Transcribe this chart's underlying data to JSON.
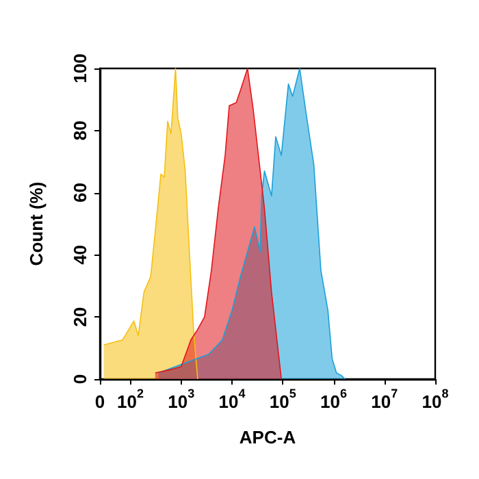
{
  "chart_data": {
    "type": "area",
    "xlabel": "APC-A",
    "ylabel": "Count (%)",
    "log": "x",
    "xlim": [
      0,
      100000000
    ],
    "xticks": [
      0,
      {
        "value": 100,
        "label": "10$^{2}$"
      },
      {
        "value": 1000,
        "label": "10$^{3}$"
      },
      {
        "value": 10000,
        "label": "10$^{4}$"
      },
      {
        "value": 100000,
        "label": "10$^{5}$"
      },
      {
        "value": 1000000,
        "label": "10$^{6}$"
      },
      {
        "value": 10000000,
        "label": "10$^{7}$"
      },
      {
        "value": 100000000,
        "label": "10$^{8}$"
      }
    ],
    "ylim": [
      0,
      100
    ],
    "yticks": [
      0,
      20,
      40,
      60,
      80,
      100
    ],
    "grid": false,
    "series": [
      {
        "color": "#f5c010",
        "x": [
          30,
          70,
          117,
          143,
          185,
          251,
          324,
          398,
          464,
          541,
          631,
          774,
          858,
          1000,
          1200,
          1450,
          1750,
          2110
        ],
        "values": [
          11,
          12.6,
          18.7,
          14,
          28,
          33,
          51,
          66,
          65,
          83,
          79,
          100,
          84,
          79,
          67,
          41,
          16,
          0
        ]
      },
      {
        "color": "#1aa0d8",
        "x": [
          359,
          3470,
          6470,
          10000,
          14700,
          20200,
          27800,
          35900,
          38300,
          43500,
          60000,
          72600,
          93700,
          129000,
          156000,
          215000,
          297000,
          408000,
          562000,
          774000,
          937000,
          1140000,
          1470000,
          1670000
        ],
        "values": [
          2,
          8,
          12.6,
          22,
          33,
          41,
          49,
          41,
          59,
          67,
          59,
          78,
          72,
          95,
          91,
          100,
          84,
          69,
          35,
          22,
          6.5,
          2,
          1,
          0
        ]
      },
      {
        "color": "#e0161b",
        "x": [
          308,
          600,
          1000,
          1550,
          2110,
          2880,
          3930,
          5370,
          7330,
          8830,
          12100,
          14700,
          20200,
          26100,
          31600,
          43500,
          60000,
          93700
        ],
        "values": [
          2,
          3,
          4,
          12.6,
          16,
          20,
          35,
          55,
          72,
          88,
          89,
          93,
          100,
          87,
          75,
          55,
          28,
          0
        ]
      }
    ]
  }
}
